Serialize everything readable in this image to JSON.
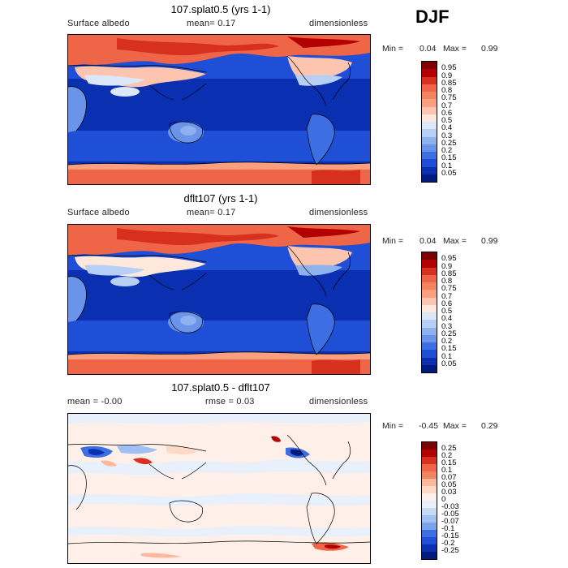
{
  "season": "DJF",
  "panels": [
    {
      "title": "107.splat0.5 (yrs 1-1)",
      "left_text": "Surface albedo",
      "mid_text": "mean=   0.17",
      "right_text": "dimensionless",
      "min_label": "Min =",
      "min_value": "0.04",
      "max_label": "Max =",
      "max_value": "0.99",
      "colorbar": {
        "labels": [
          "0.95",
          "0.9",
          "0.85",
          "0.8",
          "0.75",
          "0.7",
          "0.6",
          "0.5",
          "0.4",
          "0.3",
          "0.25",
          "0.2",
          "0.15",
          "0.1",
          "0.05"
        ],
        "colors": [
          "#7f0000",
          "#b30000",
          "#d7301f",
          "#ef6548",
          "#f4845f",
          "#fc9f7e",
          "#fdc5b0",
          "#fee8dc",
          "#dbe8fa",
          "#b8cff5",
          "#8fb2ef",
          "#6a93ea",
          "#3d6fe3",
          "#1f4fd6",
          "#0a2fb0",
          "#001a80"
        ]
      }
    },
    {
      "title": "dflt107 (yrs 1-1)",
      "left_text": "Surface albedo",
      "mid_text": "mean=   0.17",
      "right_text": "dimensionless",
      "min_label": "Min =",
      "min_value": "0.04",
      "max_label": "Max =",
      "max_value": "0.99",
      "colorbar": {
        "labels": [
          "0.95",
          "0.9",
          "0.85",
          "0.8",
          "0.75",
          "0.7",
          "0.6",
          "0.5",
          "0.4",
          "0.3",
          "0.25",
          "0.2",
          "0.15",
          "0.1",
          "0.05"
        ],
        "colors": [
          "#7f0000",
          "#b30000",
          "#d7301f",
          "#ef6548",
          "#f4845f",
          "#fc9f7e",
          "#fdc5b0",
          "#fee8dc",
          "#dbe8fa",
          "#b8cff5",
          "#8fb2ef",
          "#6a93ea",
          "#3d6fe3",
          "#1f4fd6",
          "#0a2fb0",
          "#001a80"
        ]
      }
    },
    {
      "title": "107.splat0.5 - dflt107",
      "left_text": "mean =   -0.00",
      "mid_text": "rmse =   0.03",
      "right_text": "dimensionless",
      "min_label": "Min =",
      "min_value": "-0.45",
      "max_label": "Max =",
      "max_value": "0.29",
      "colorbar": {
        "labels": [
          "0.25",
          "0.2",
          "0.15",
          "0.1",
          "0.07",
          "0.05",
          "0.03",
          "0",
          "-0.03",
          "-0.05",
          "-0.07",
          "-0.1",
          "-0.15",
          "-0.2",
          "-0.25"
        ],
        "colors": [
          "#7f0000",
          "#b30000",
          "#d7301f",
          "#ef6548",
          "#f4845f",
          "#fcb89a",
          "#fdd9c7",
          "#fef0e8",
          "#e8f0fc",
          "#c7dbf7",
          "#a0bff2",
          "#7aa3ec",
          "#3d6fe3",
          "#1f4fd6",
          "#0a2fb0",
          "#001a80"
        ]
      }
    }
  ]
}
